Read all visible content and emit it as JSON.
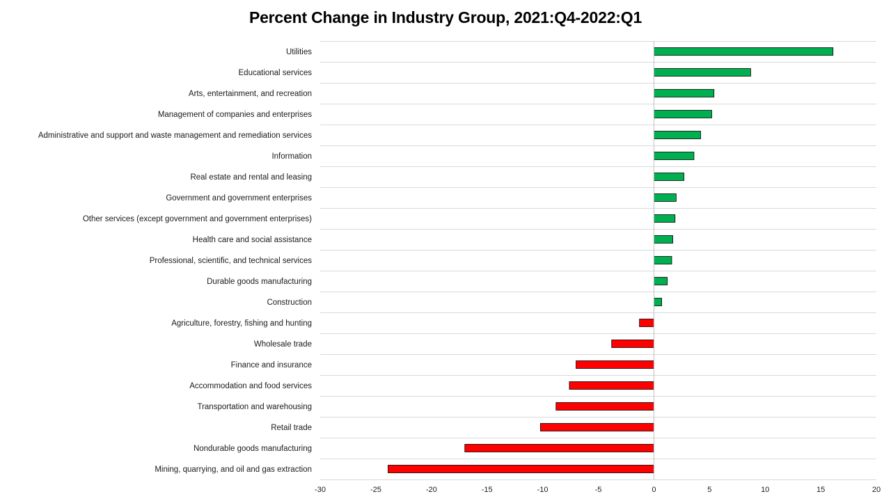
{
  "chart_data": {
    "type": "bar",
    "orientation": "horizontal",
    "title": "Percent Change in Industry Group, 2021:Q4-2022:Q1",
    "xlabel": "",
    "ylabel": "",
    "xlim": [
      -30,
      20
    ],
    "x_ticks": [
      -30,
      -25,
      -20,
      -15,
      -10,
      -5,
      0,
      5,
      10,
      15,
      20
    ],
    "grid": "horizontal",
    "legend": "none",
    "colors": {
      "positive": "#00b050",
      "negative": "#ff0000",
      "bar_outline": "#000000",
      "gridline": "#d9d9d9"
    },
    "categories": [
      "Utilities",
      "Educational services",
      "Arts, entertainment, and recreation",
      "Management of companies and enterprises",
      "Administrative and support and waste management and remediation services",
      "Information",
      "Real estate and rental and leasing",
      "Government and government enterprises",
      "Other services (except government and government enterprises)",
      "Health care and social assistance",
      "Professional, scientific, and technical services",
      "Durable goods manufacturing",
      "Construction",
      "Agriculture, forestry, fishing and hunting",
      "Wholesale trade",
      "Finance and insurance",
      "Accommodation and food services",
      "Transportation and warehousing",
      "Retail trade",
      "Nondurable goods manufacturing",
      "Mining, quarrying, and oil and gas extraction"
    ],
    "values": [
      16.1,
      8.7,
      5.4,
      5.2,
      4.2,
      3.6,
      2.7,
      2.0,
      1.9,
      1.7,
      1.6,
      1.2,
      0.7,
      -1.3,
      -3.8,
      -7.0,
      -7.6,
      -8.8,
      -10.2,
      -17.0,
      -23.9
    ]
  }
}
